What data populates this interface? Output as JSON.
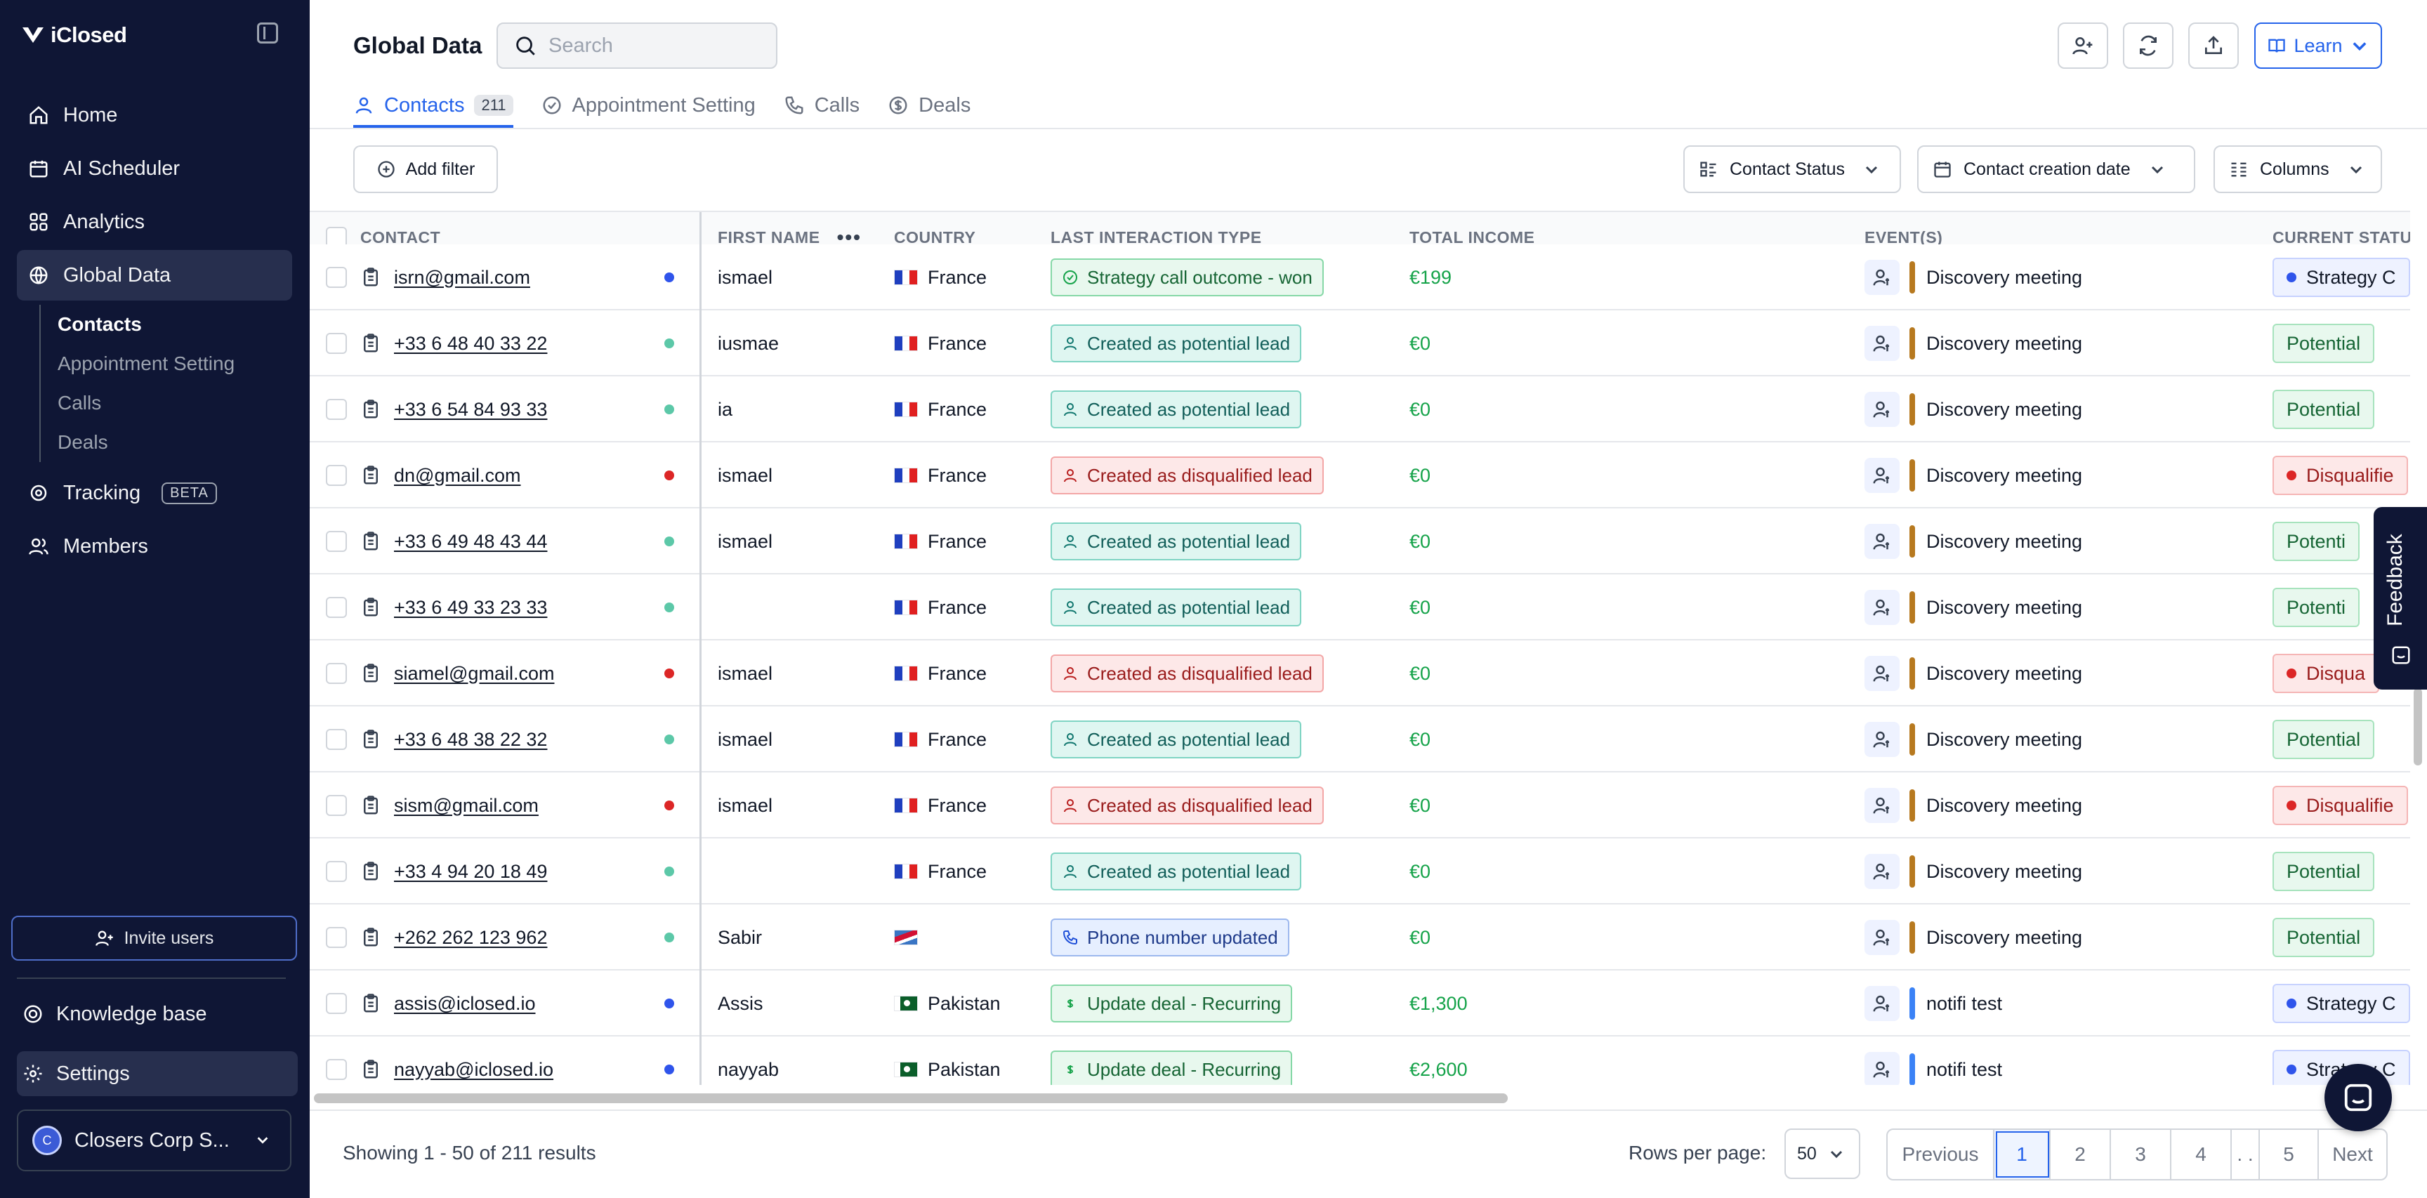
{
  "sidebar": {
    "brand": "iClosed",
    "nav": [
      {
        "label": "Home",
        "icon": "home-icon"
      },
      {
        "label": "AI Scheduler",
        "icon": "calendar-icon"
      },
      {
        "label": "Analytics",
        "icon": "grid-icon"
      },
      {
        "label": "Global Data",
        "icon": "globe-icon"
      }
    ],
    "sub_nav": [
      {
        "label": "Contacts"
      },
      {
        "label": "Appointment Setting"
      },
      {
        "label": "Calls"
      },
      {
        "label": "Deals"
      }
    ],
    "nav_after": [
      {
        "label": "Tracking",
        "badge": "BETA",
        "icon": "target-icon"
      },
      {
        "label": "Members",
        "icon": "users-icon"
      }
    ],
    "invite_label": "Invite users",
    "knowledge_base": "Knowledge base",
    "settings": "Settings",
    "workspace_initial": "C",
    "workspace_name": "Closers Corp S..."
  },
  "header": {
    "title": "Global Data",
    "search_placeholder": "Search",
    "learn_label": "Learn"
  },
  "tabs": [
    {
      "label": "Contacts",
      "count": "211"
    },
    {
      "label": "Appointment Setting"
    },
    {
      "label": "Calls"
    },
    {
      "label": "Deals"
    }
  ],
  "filters": {
    "add_filter": "Add filter",
    "contact_status": "Contact Status",
    "creation_date": "Contact creation date",
    "columns": "Columns"
  },
  "table": {
    "columns": [
      "Contact",
      "First name",
      "Country",
      "Last interaction type",
      "Total income",
      "Event(s)",
      "Current status"
    ],
    "rows": [
      {
        "contact": "isrn@gmail.com",
        "dot": "#2f54eb",
        "first": "ismael",
        "country": "France",
        "flag": "fr",
        "interaction": "Strategy call outcome - won",
        "itype": "green",
        "income": "€199",
        "event": "Discovery meeting",
        "ebar": "#b7791f",
        "status": "Strategy C",
        "stype": "blue"
      },
      {
        "contact": "+33 6 48 40 33 22",
        "dot": "#5cc8a8",
        "first": "iusmae",
        "country": "France",
        "flag": "fr",
        "interaction": "Created as potential lead",
        "itype": "teal",
        "income": "€0",
        "event": "Discovery meeting",
        "ebar": "#b7791f",
        "status": "Potential",
        "stype": "green"
      },
      {
        "contact": "+33 6 54 84 93 33",
        "dot": "#5cc8a8",
        "first": "ia",
        "country": "France",
        "flag": "fr",
        "interaction": "Created as potential lead",
        "itype": "teal",
        "income": "€0",
        "event": "Discovery meeting",
        "ebar": "#b7791f",
        "status": "Potential",
        "stype": "green"
      },
      {
        "contact": "dn@gmail.com",
        "dot": "#dc2626",
        "first": "ismael",
        "country": "France",
        "flag": "fr",
        "interaction": "Created as disqualified lead",
        "itype": "red",
        "income": "€0",
        "event": "Discovery meeting",
        "ebar": "#b7791f",
        "status": "Disqualifie",
        "stype": "red"
      },
      {
        "contact": "+33 6 49 48 43 44",
        "dot": "#5cc8a8",
        "first": "ismael",
        "country": "France",
        "flag": "fr",
        "interaction": "Created as potential lead",
        "itype": "teal",
        "income": "€0",
        "event": "Discovery meeting",
        "ebar": "#b7791f",
        "status": "Potenti",
        "stype": "green"
      },
      {
        "contact": "+33 6 49 33 23 33",
        "dot": "#5cc8a8",
        "first": "",
        "country": "France",
        "flag": "fr",
        "interaction": "Created as potential lead",
        "itype": "teal",
        "income": "€0",
        "event": "Discovery meeting",
        "ebar": "#b7791f",
        "status": "Potenti",
        "stype": "green"
      },
      {
        "contact": "siamel@gmail.com",
        "dot": "#dc2626",
        "first": "ismael",
        "country": "France",
        "flag": "fr",
        "interaction": "Created as disqualified lead",
        "itype": "red",
        "income": "€0",
        "event": "Discovery meeting",
        "ebar": "#b7791f",
        "status": "Disqua",
        "stype": "red"
      },
      {
        "contact": "+33 6 48 38 22 32",
        "dot": "#5cc8a8",
        "first": "ismael",
        "country": "France",
        "flag": "fr",
        "interaction": "Created as potential lead",
        "itype": "teal",
        "income": "€0",
        "event": "Discovery meeting",
        "ebar": "#b7791f",
        "status": "Potential",
        "stype": "green"
      },
      {
        "contact": "sism@gmail.com",
        "dot": "#dc2626",
        "first": "ismael",
        "country": "France",
        "flag": "fr",
        "interaction": "Created as disqualified lead",
        "itype": "red",
        "income": "€0",
        "event": "Discovery meeting",
        "ebar": "#b7791f",
        "status": "Disqualifie",
        "stype": "red"
      },
      {
        "contact": "+33 4 94 20 18 49",
        "dot": "#5cc8a8",
        "first": "",
        "country": "France",
        "flag": "fr",
        "interaction": "Created as potential lead",
        "itype": "teal",
        "income": "€0",
        "event": "Discovery meeting",
        "ebar": "#b7791f",
        "status": "Potential",
        "stype": "green"
      },
      {
        "contact": "+262 262 123 962",
        "dot": "#5cc8a8",
        "first": "Sabir",
        "country": "",
        "flag": "km",
        "interaction": "Phone number updated",
        "itype": "blue",
        "income": "€0",
        "event": "Discovery meeting",
        "ebar": "#b7791f",
        "status": "Potential",
        "stype": "green"
      },
      {
        "contact": "assis@iclosed.io",
        "dot": "#2f54eb",
        "first": "Assis",
        "country": "Pakistan",
        "flag": "pk",
        "interaction": "Update deal - Recurring",
        "itype": "green",
        "income": "€1,300",
        "event": "notifi test",
        "ebar": "#3b82f6",
        "status": "Strategy C",
        "stype": "blue"
      },
      {
        "contact": "nayyab@iclosed.io",
        "dot": "#2f54eb",
        "first": "nayyab",
        "country": "Pakistan",
        "flag": "pk",
        "interaction": "Update deal - Recurring",
        "itype": "green",
        "income": "€2,600",
        "event": "notifi test",
        "ebar": "#3b82f6",
        "status": "Strategy C",
        "stype": "blue"
      }
    ]
  },
  "footer": {
    "showing": "Showing 1 - 50 of 211 results",
    "rows_per_page_label": "Rows per page:",
    "rows_per_page": "50",
    "pages": [
      "Previous",
      "1",
      "2",
      "3",
      "4",
      ". .",
      "5",
      "Next"
    ],
    "current_page": "1"
  },
  "feedback_label": "Feedback"
}
